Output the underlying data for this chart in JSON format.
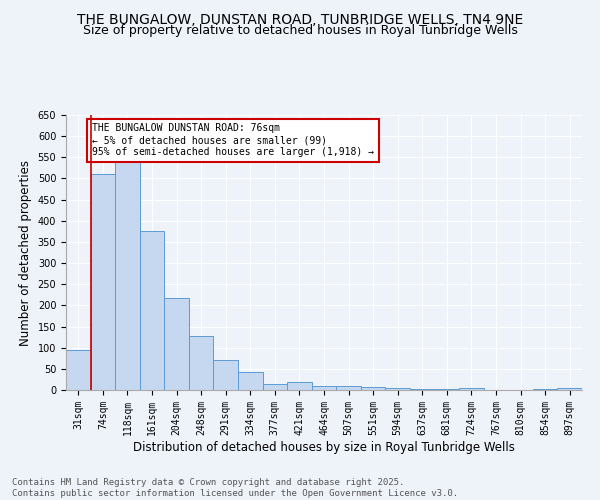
{
  "title": "THE BUNGALOW, DUNSTAN ROAD, TUNBRIDGE WELLS, TN4 9NE",
  "subtitle": "Size of property relative to detached houses in Royal Tunbridge Wells",
  "xlabel": "Distribution of detached houses by size in Royal Tunbridge Wells",
  "ylabel": "Number of detached properties",
  "footer_line1": "Contains HM Land Registry data © Crown copyright and database right 2025.",
  "footer_line2": "Contains public sector information licensed under the Open Government Licence v3.0.",
  "categories": [
    "31sqm",
    "74sqm",
    "118sqm",
    "161sqm",
    "204sqm",
    "248sqm",
    "291sqm",
    "334sqm",
    "377sqm",
    "421sqm",
    "464sqm",
    "507sqm",
    "551sqm",
    "594sqm",
    "637sqm",
    "681sqm",
    "724sqm",
    "767sqm",
    "810sqm",
    "854sqm",
    "897sqm"
  ],
  "values": [
    95,
    510,
    540,
    375,
    218,
    127,
    72,
    42,
    15,
    18,
    10,
    10,
    7,
    5,
    3,
    2,
    5,
    1,
    1,
    3,
    4
  ],
  "bar_color": "#c5d8f0",
  "bar_edge_color": "#5b9bd5",
  "ylim": [
    0,
    650
  ],
  "yticks": [
    0,
    50,
    100,
    150,
    200,
    250,
    300,
    350,
    400,
    450,
    500,
    550,
    600,
    650
  ],
  "annotation_text": "THE BUNGALOW DUNSTAN ROAD: 76sqm\n← 5% of detached houses are smaller (99)\n95% of semi-detached houses are larger (1,918) →",
  "vline_x": 0.5,
  "annotation_box_color": "#ffffff",
  "annotation_box_edge_color": "#cc0000",
  "background_color": "#eef2f9",
  "grid_color": "#ffffff",
  "title_fontsize": 10,
  "subtitle_fontsize": 9,
  "tick_fontsize": 7,
  "ylabel_fontsize": 8.5,
  "xlabel_fontsize": 8.5,
  "footer_fontsize": 6.5
}
